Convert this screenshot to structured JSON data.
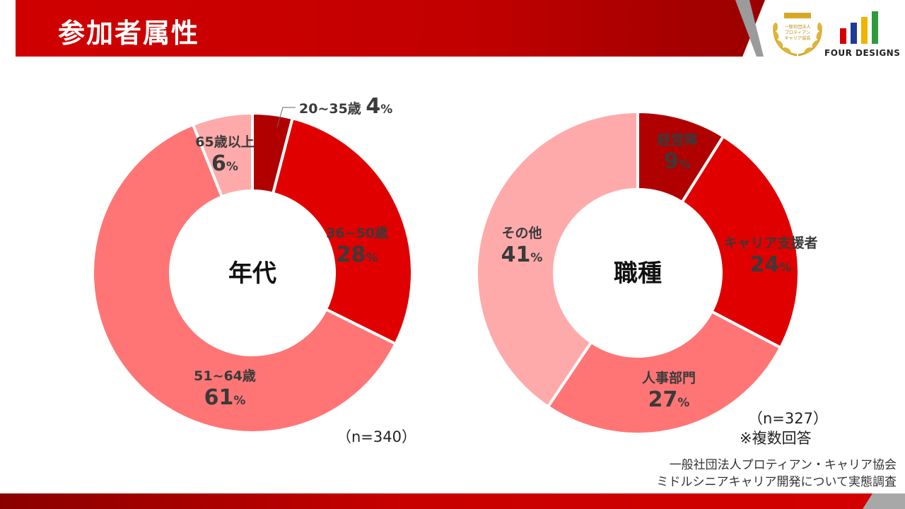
{
  "header": {
    "title": "参加者属性",
    "badge_text": "一般社団法人\nプロティアン\nキャリア協会",
    "logo_text": "FOUR DESIGNS",
    "colors": {
      "header": "#c80000",
      "accent_dark": "#9a0000"
    },
    "logo_bar_colors": [
      "#d40000",
      "#1f3b9a",
      "#f0b400",
      "#2e9a3a"
    ]
  },
  "chart_data": [
    {
      "type": "pie",
      "center_label": "年代",
      "categories": [
        "20~35歳",
        "36~50歳",
        "51~64歳",
        "65歳以上"
      ],
      "values": [
        4,
        28,
        61,
        6
      ],
      "unit": "%",
      "colors": [
        "#b00000",
        "#e00000",
        "#ff7575",
        "#ffaaaa"
      ],
      "note": "（n=340）"
    },
    {
      "type": "pie",
      "center_label": "職種",
      "categories": [
        "経営陣",
        "キャリア支援者",
        "人事部門",
        "その他"
      ],
      "values": [
        9,
        24,
        27,
        41
      ],
      "unit": "%",
      "colors": [
        "#b00000",
        "#e00000",
        "#ff7575",
        "#ffaaaa"
      ],
      "note_lines": [
        "（n=327）",
        "※複数回答"
      ]
    }
  ],
  "source": {
    "line1": "一般社団法人プロティアン・キャリア協会",
    "line2": "ミドルシニアキャリア開発について実態調査"
  }
}
